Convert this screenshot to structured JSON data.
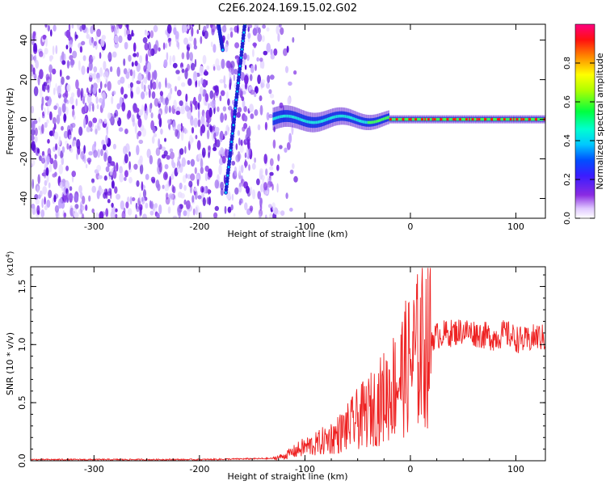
{
  "title": "C2E6.2024.169.15.02.G02",
  "colors": {
    "snr_line": "#ee2222",
    "signal_core": "#ff2020",
    "noise": "#7b1fe0"
  },
  "chart_data": [
    {
      "type": "heatmap",
      "xlabel": "Height of straight line (km)",
      "ylabel": "Frequency (Hz)",
      "xlim": [
        -360,
        128
      ],
      "ylim": [
        -50,
        48
      ],
      "xticks": [
        -300,
        -200,
        -100,
        0,
        100
      ],
      "yticks": [
        -40,
        -20,
        0,
        20,
        40
      ],
      "x_tick_labels": [
        "-300",
        "-200",
        "-100",
        "0",
        "100"
      ],
      "y_tick_labels": [
        "-40",
        "-20",
        "0",
        "20",
        "40"
      ],
      "colorbar": {
        "label": "Normalized spectral amplitude",
        "range": [
          0,
          1
        ],
        "ticks": [
          0.0,
          0.2,
          0.4,
          0.6,
          0.8
        ],
        "tick_labels": [
          "0.0",
          "0.2",
          "0.4",
          "0.6",
          "0.8"
        ],
        "colormap": "rainbow (white-purple-blue-cyan-green-yellow-red-magenta)"
      },
      "features": {
        "noise_region_height_km": [
          -360,
          -130
        ],
        "signal_frequency_hz": 0,
        "signal_onset_km": -130,
        "streak_1": {
          "from": [
            -182,
            48
          ],
          "to": [
            -178,
            35
          ]
        },
        "streak_2": {
          "from": [
            -157,
            48
          ],
          "to": [
            -175,
            -37
          ]
        }
      }
    },
    {
      "type": "line",
      "xlabel": "Height of straight line (km)",
      "ylabel": "SNR (10 * v/v)",
      "y_multiplier_label": "(x10",
      "y_multiplier_exp": "4",
      "y_multiplier_close": ")",
      "xlim": [
        -360,
        128
      ],
      "ylim": [
        0,
        1.67
      ],
      "xticks": [
        -300,
        -200,
        -100,
        0,
        100
      ],
      "yticks": [
        0.0,
        0.5,
        1.0,
        1.5
      ],
      "x_tick_labels": [
        "-300",
        "-200",
        "-100",
        "0",
        "100"
      ],
      "y_tick_labels": [
        "0.0",
        "0.5",
        "1.0",
        "1.5"
      ],
      "series": [
        {
          "x": [
            -360,
            -300,
            -200,
            -130,
            -120,
            -110,
            -100,
            -90,
            -80,
            -70,
            -60,
            -50,
            -40,
            -30,
            -20,
            -10,
            0,
            10,
            20,
            30,
            40,
            50,
            60,
            70,
            80,
            90,
            100,
            110,
            120,
            128
          ],
          "y": [
            0.01,
            0.01,
            0.01,
            0.02,
            0.04,
            0.08,
            0.12,
            0.14,
            0.18,
            0.22,
            0.28,
            0.36,
            0.42,
            0.5,
            0.6,
            0.72,
            0.85,
            0.98,
            1.06,
            1.09,
            1.1,
            1.12,
            1.1,
            1.08,
            1.06,
            1.1,
            1.05,
            1.03,
            1.07,
            1.05
          ]
        }
      ]
    }
  ]
}
